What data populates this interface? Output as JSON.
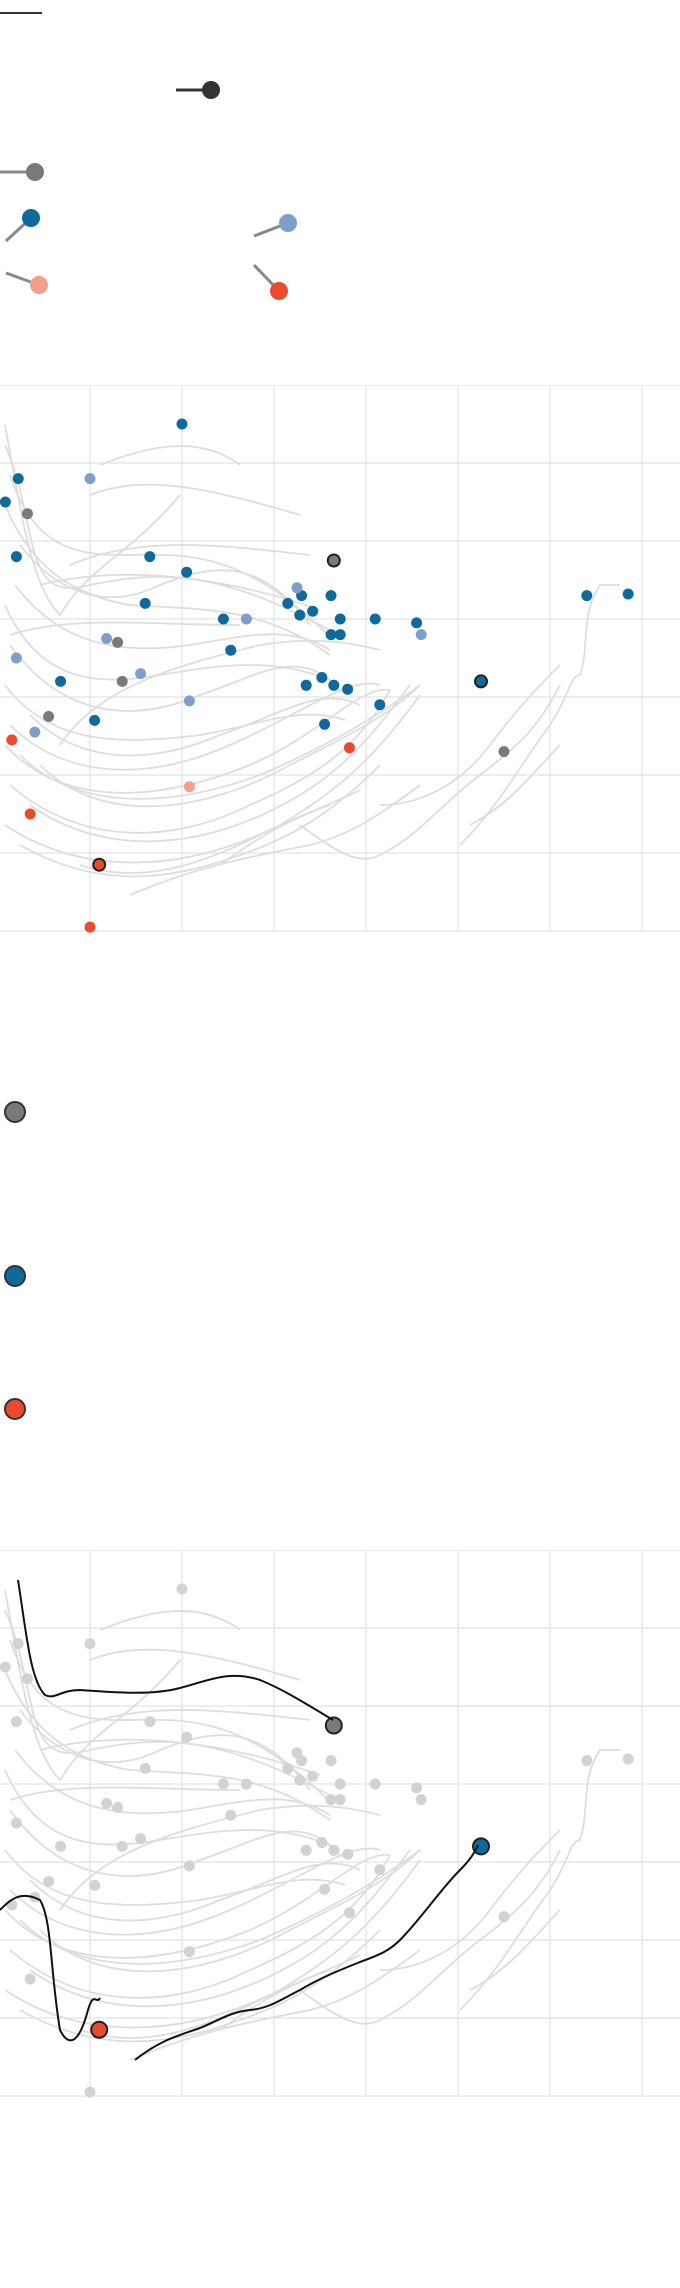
{
  "colors": {
    "grid": "#dddddd",
    "trail": "#dddddd",
    "trail_highlight": "#111111",
    "gray": "#7a7a7a",
    "blue": "#0e6a9c",
    "light_blue": "#7f9fcb",
    "red": "#ea4b2f",
    "salmon": "#f2a08a",
    "dark": "#333333"
  },
  "legend": {
    "items": [
      {
        "icon": "ball-and-stick-dark",
        "color": "#333333"
      },
      {
        "icon": "ball-and-stick-gray",
        "color": "#7a7a7a"
      },
      {
        "icon": "ball-and-stick-blue",
        "color": "#0e6a9c"
      },
      {
        "icon": "ball-and-stick-light-blue",
        "color": "#7f9fcb"
      },
      {
        "icon": "ball-and-stick-salmon",
        "color": "#f2a08a"
      },
      {
        "icon": "ball-and-stick-red",
        "color": "#ea4b2f"
      }
    ],
    "key_dots": [
      {
        "color": "#7a7a7a"
      },
      {
        "color": "#0e6a9c"
      },
      {
        "color": "#ea4b2f"
      }
    ]
  },
  "chart_data": [
    {
      "type": "scatter",
      "title": "",
      "xlabel": "",
      "ylabel": "",
      "xlim": [
        0,
        7.4
      ],
      "ylim": [
        0,
        7
      ],
      "grid": true,
      "x_gridlines": [
        1,
        2,
        3,
        4,
        5,
        6,
        7
      ],
      "y_gridlines": [
        0,
        1,
        2,
        3,
        4,
        5,
        6,
        7
      ],
      "series": [
        {
          "color_key": "blue",
          "points": [
            [
              2.0,
              6.5
            ],
            [
              0.22,
              5.8
            ],
            [
              0.08,
              5.5
            ],
            [
              0.2,
              4.8
            ],
            [
              1.65,
              4.8
            ],
            [
              2.05,
              4.6
            ],
            [
              1.6,
              4.2
            ],
            [
              2.45,
              4.0
            ],
            [
              3.3,
              4.3
            ],
            [
              3.15,
              4.2
            ],
            [
              3.62,
              4.3
            ],
            [
              3.28,
              4.05
            ],
            [
              3.42,
              4.1
            ],
            [
              3.72,
              4.0
            ],
            [
              3.62,
              3.8
            ],
            [
              3.72,
              3.8
            ],
            [
              4.1,
              4.0
            ],
            [
              4.55,
              3.95
            ],
            [
              2.53,
              3.6
            ],
            [
              0.68,
              3.2
            ],
            [
              3.52,
              3.25
            ],
            [
              3.35,
              3.15
            ],
            [
              3.65,
              3.15
            ],
            [
              3.8,
              3.1
            ],
            [
              4.15,
              2.9
            ],
            [
              1.05,
              2.7
            ],
            [
              3.55,
              2.65
            ],
            [
              6.4,
              4.3
            ],
            [
              6.85,
              4.32
            ]
          ]
        },
        {
          "color_key": "light_blue",
          "points": [
            [
              1.0,
              5.8
            ],
            [
              0.2,
              3.5
            ],
            [
              1.18,
              3.75
            ],
            [
              2.7,
              4.0
            ],
            [
              4.6,
              3.8
            ],
            [
              1.55,
              3.3
            ],
            [
              2.08,
              2.95
            ],
            [
              0.4,
              2.55
            ],
            [
              3.25,
              4.4
            ]
          ]
        },
        {
          "color_key": "gray",
          "points": [
            [
              0.32,
              5.35
            ],
            [
              1.3,
              3.7
            ],
            [
              1.35,
              3.2
            ],
            [
              0.55,
              2.75
            ],
            [
              5.5,
              2.3
            ]
          ]
        },
        {
          "color_key": "red",
          "points": [
            [
              0.15,
              2.45
            ],
            [
              0.35,
              1.5
            ],
            [
              3.82,
              2.35
            ],
            [
              1.0,
              0.05
            ]
          ]
        },
        {
          "color_key": "salmon",
          "points": [
            [
              2.08,
              1.85
            ]
          ]
        },
        {
          "color_key": "highlight",
          "points": [
            [
              3.65,
              4.75,
              "gray"
            ],
            [
              5.25,
              3.2,
              "blue"
            ],
            [
              1.1,
              0.85,
              "red"
            ]
          ]
        }
      ]
    },
    {
      "type": "scatter",
      "title": "",
      "xlabel": "",
      "ylabel": "",
      "xlim": [
        0,
        7.4
      ],
      "ylim": [
        0,
        7
      ],
      "grid": true,
      "highlighted": [
        {
          "color_key": "gray",
          "point": [
            3.65,
            4.75
          ]
        },
        {
          "color_key": "blue",
          "point": [
            5.25,
            3.2
          ]
        },
        {
          "color_key": "red",
          "point": [
            1.1,
            0.85
          ]
        }
      ]
    }
  ]
}
